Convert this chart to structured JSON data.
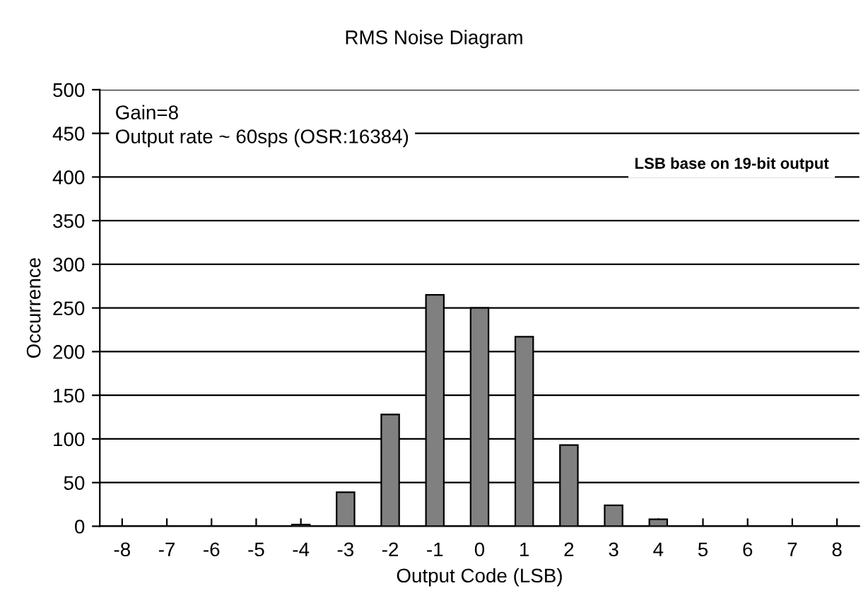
{
  "chart_data": {
    "type": "bar",
    "title": "RMS Noise Diagram",
    "xlabel": "Output Code (LSB)",
    "ylabel": "Occurrence",
    "categories": [
      "-8",
      "-7",
      "-6",
      "-5",
      "-4",
      "-3",
      "-2",
      "-1",
      "0",
      "1",
      "2",
      "3",
      "4",
      "5",
      "6",
      "7",
      "8"
    ],
    "values": [
      0,
      0,
      0,
      0,
      2,
      39,
      128,
      265,
      250,
      217,
      93,
      24,
      8,
      0,
      0,
      0,
      0
    ],
    "color": "#808080",
    "ylim": [
      0,
      500
    ],
    "yticks": [
      0,
      50,
      100,
      150,
      200,
      250,
      300,
      350,
      400,
      450,
      500
    ],
    "grid": "y",
    "annotations": [
      "Gain=8\nOutput rate ~ 60sps (OSR:16384)",
      "LSB base on 19-bit output"
    ]
  }
}
